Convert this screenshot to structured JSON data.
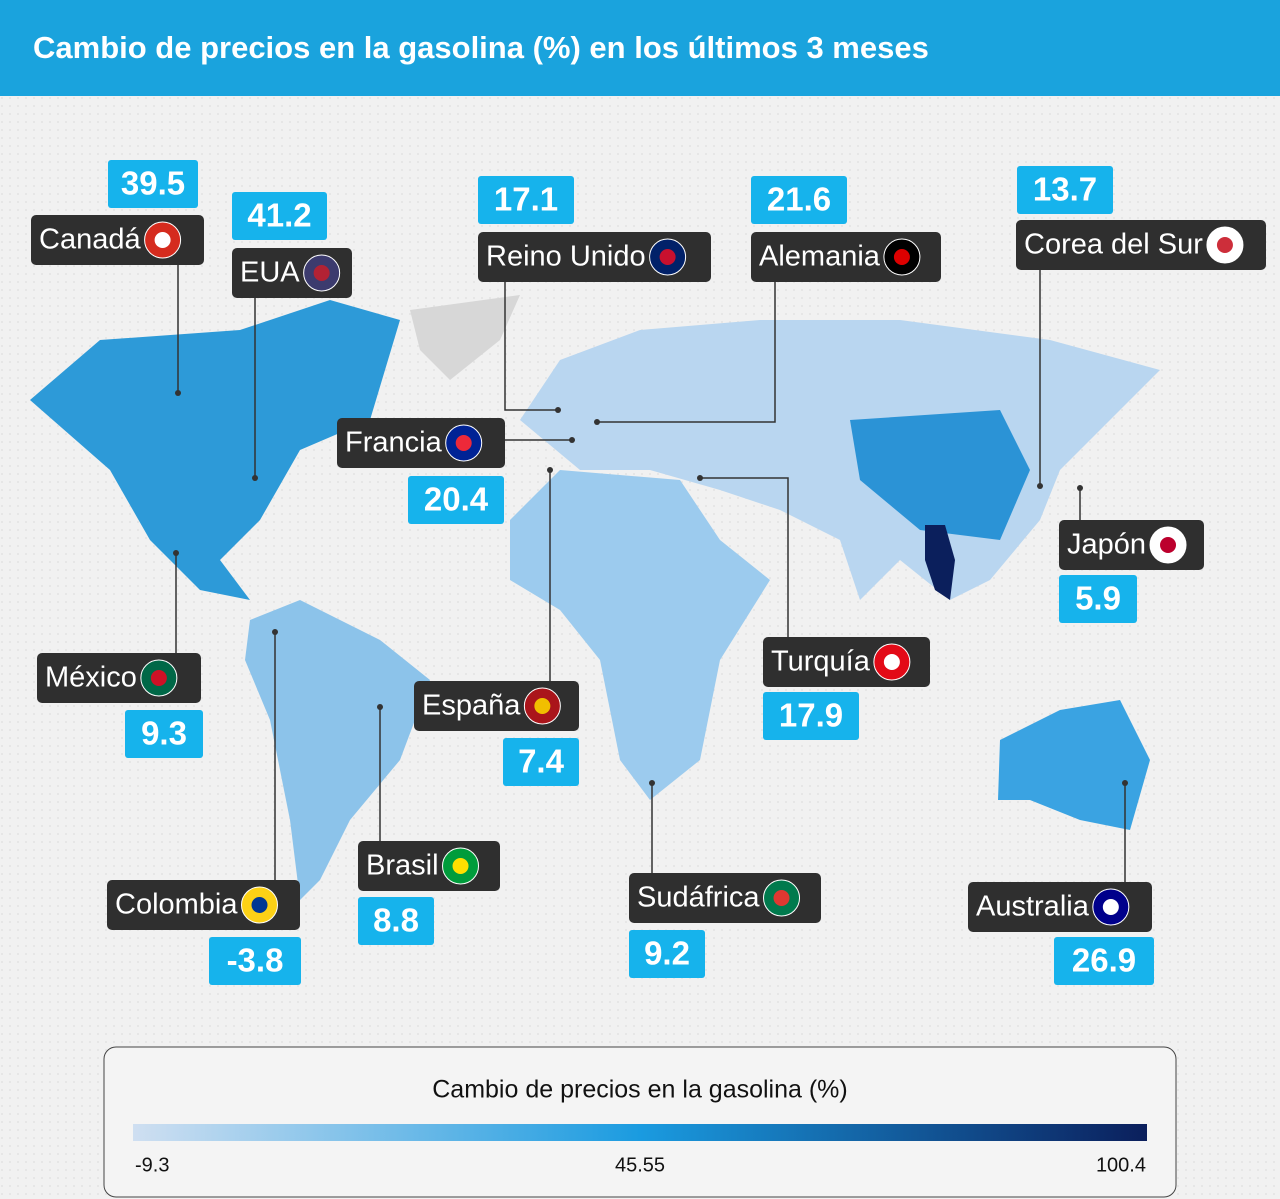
{
  "header": {
    "title": "Cambio de precios en la gasolina (%) en los últimos 3 meses"
  },
  "countries": [
    {
      "name": "Canadá",
      "value": 39.5
    },
    {
      "name": "EUA",
      "value": 41.2
    },
    {
      "name": "Reino Unido",
      "value": 17.1
    },
    {
      "name": "Alemania",
      "value": 21.6
    },
    {
      "name": "Corea del Sur",
      "value": 13.7
    },
    {
      "name": "Francia",
      "value": 20.4
    },
    {
      "name": "Japón",
      "value": 5.9
    },
    {
      "name": "México",
      "value": 9.3
    },
    {
      "name": "España",
      "value": 7.4
    },
    {
      "name": "Turquía",
      "value": 17.9
    },
    {
      "name": "Colombia",
      "value": -3.8
    },
    {
      "name": "Brasil",
      "value": 8.8
    },
    {
      "name": "Sudáfrica",
      "value": 9.2
    },
    {
      "name": "Australia",
      "value": 26.9
    }
  ],
  "legend": {
    "title": "Cambio de precios en la gasolina (%)",
    "min": -9.3,
    "mid": 45.55,
    "max": 100.4
  }
}
